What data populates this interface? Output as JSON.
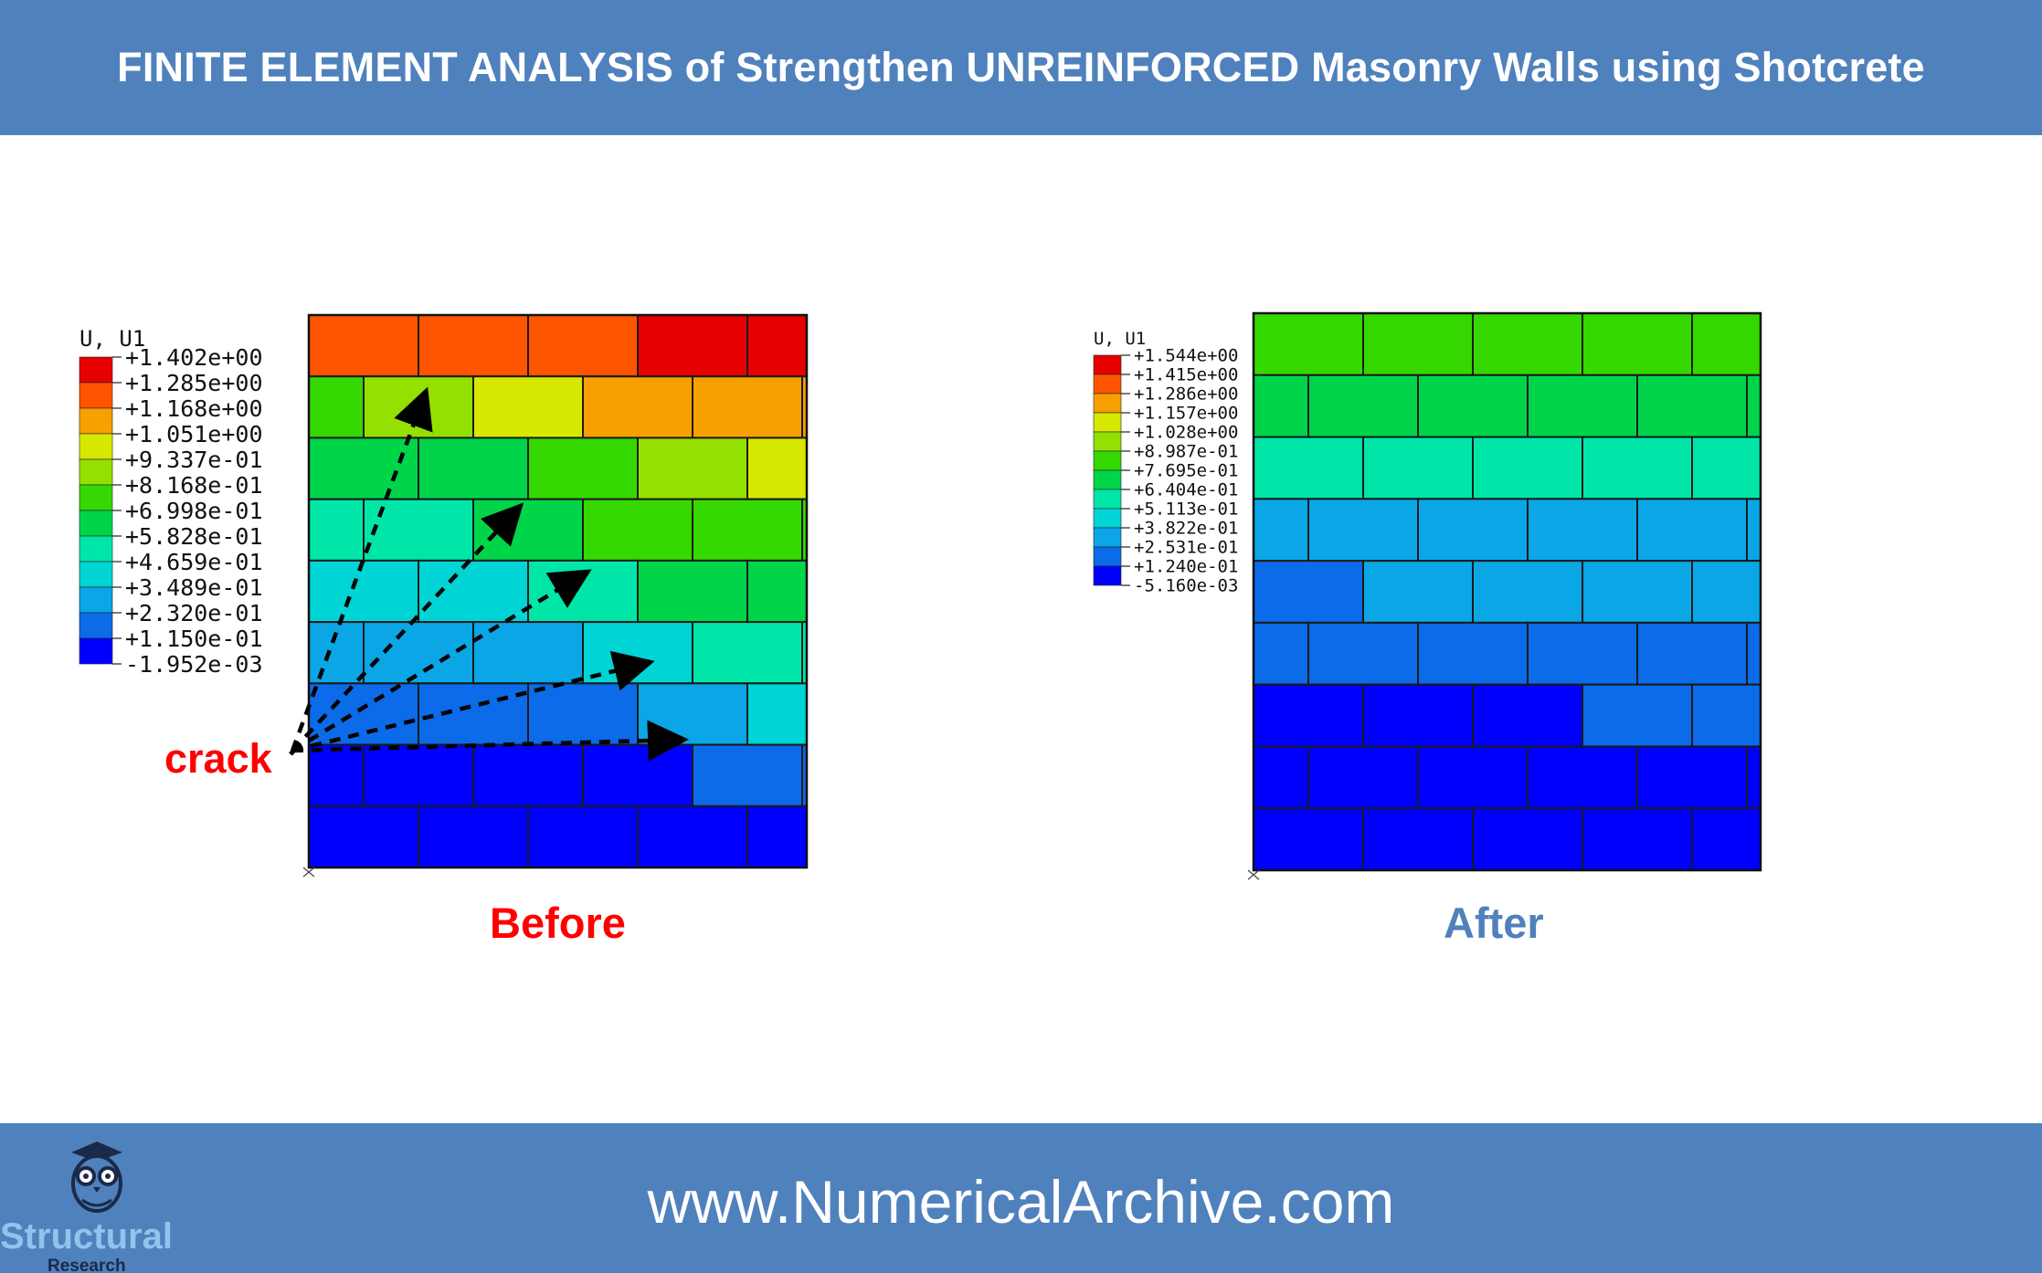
{
  "header": {
    "title": "FINITE ELEMENT ANALYSIS of Strengthen UNREINFORCED Masonry Walls using Shotcrete"
  },
  "before": {
    "caption": "Before",
    "caption_color": "#ff0000",
    "crack_label": "crack",
    "crack_color": "#ff0000",
    "legend": {
      "title": "U, U1",
      "labels": [
        "+1.402e+00",
        "+1.285e+00",
        "+1.168e+00",
        "+1.051e+00",
        "+9.337e-01",
        "+8.168e-01",
        "+6.998e-01",
        "+5.828e-01",
        "+4.659e-01",
        "+3.489e-01",
        "+2.320e-01",
        "+1.150e-01",
        "-1.952e-03"
      ],
      "colors": [
        "#e60000",
        "#ff5500",
        "#f7a000",
        "#d7e900",
        "#94e000",
        "#35d800",
        "#00d54a",
        "#00e6a8",
        "#00d4d4",
        "#0aa6e6",
        "#0b6be8",
        "#0000ff"
      ]
    }
  },
  "after": {
    "caption": "After",
    "caption_color": "#4f81bd",
    "legend": {
      "title": "U, U1",
      "labels": [
        "+1.544e+00",
        "+1.415e+00",
        "+1.286e+00",
        "+1.157e+00",
        "+1.028e+00",
        "+8.987e-01",
        "+7.695e-01",
        "+6.404e-01",
        "+5.113e-01",
        "+3.822e-01",
        "+2.531e-01",
        "+1.240e-01",
        "-5.160e-03"
      ],
      "colors": [
        "#e60000",
        "#ff5500",
        "#f7a000",
        "#d7e900",
        "#94e000",
        "#35d800",
        "#00d54a",
        "#00e6a8",
        "#00d4d4",
        "#0aa6e6",
        "#0b6be8",
        "#0000ff"
      ]
    }
  },
  "footer": {
    "url": "www.NumericalArchive.com",
    "logo_text": "Structural",
    "logo_sub": "Research"
  },
  "colors": {
    "band": "#4f81bd",
    "mortar": "#1a1a1a"
  }
}
